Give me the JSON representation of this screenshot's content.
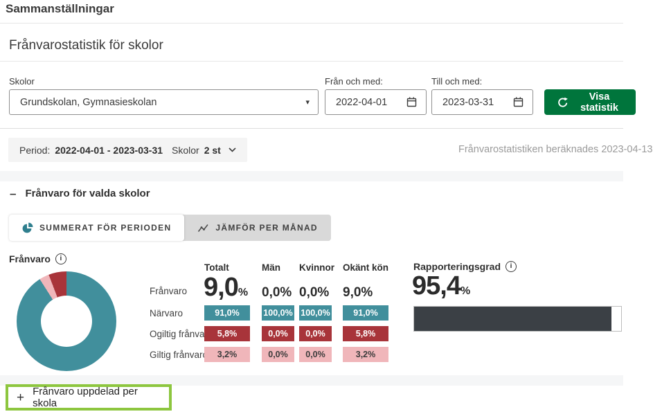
{
  "header": {
    "app_title": "Sammanställningar",
    "page_title": "Frånvarostatistik för skolor"
  },
  "filters": {
    "schools_label": "Skolor",
    "schools_value": "Grundskolan, Gymnasieskolan",
    "from_label": "Från och med:",
    "from_value": "2022-04-01",
    "to_label": "Till och med:",
    "to_value": "2023-03-31",
    "submit_label": "Visa statistik"
  },
  "period_bar": {
    "period_label": "Period:",
    "period_value": "2022-04-01 - 2023-03-31",
    "schools_label": "Skolor",
    "schools_count": "2 st",
    "calculated_note": "Frånvarostatistiken beräknades 2023-04-13"
  },
  "section": {
    "collapse_title": "Frånvaro för valda skolor",
    "tab_summary": "Summerat för perioden",
    "tab_compare": "Jämför per månad"
  },
  "chart_data": {
    "type": "pie",
    "title": "Frånvaro",
    "donut": true,
    "slices": [
      {
        "label": "Närvaro",
        "value": 91.0,
        "color": "#418f9c"
      },
      {
        "label": "Giltig frånvaro",
        "value": 3.2,
        "color": "#f0b6ba"
      },
      {
        "label": "Ogiltig frånvaro",
        "value": 5.8,
        "color": "#a8343a"
      }
    ]
  },
  "stats": {
    "title": "Frånvaro",
    "columns": [
      "Totalt",
      "Män",
      "Kvinnor",
      "Okänt kön"
    ],
    "franvaro": {
      "label": "Frånvaro",
      "total_main": "9,0",
      "total_unit": "%",
      "man": "0,0%",
      "kvinnor": "0,0%",
      "okant": "9,0%"
    },
    "narvaro": {
      "label": "Närvaro",
      "values": [
        "91,0%",
        "100,0%",
        "100,0%",
        "91,0%"
      ]
    },
    "ogiltig": {
      "label": "Ogiltig frånvaro",
      "values": [
        "5,8%",
        "0,0%",
        "0,0%",
        "5,8%"
      ]
    },
    "giltig": {
      "label": "Giltig frånvaro",
      "values": [
        "3,2%",
        "0,0%",
        "0,0%",
        "3,2%"
      ]
    }
  },
  "rapportering": {
    "label": "Rapporteringsgrad",
    "value_main": "95,4",
    "value_unit": "%",
    "percent": 95.4
  },
  "expander": {
    "label": "Frånvaro uppdelad per skola"
  },
  "icons": {
    "info": "i",
    "plus": "+",
    "minus": "–",
    "select_caret": "▾"
  },
  "colors": {
    "teal": "#418f9c",
    "red": "#a8343a",
    "pink": "#f0b6ba",
    "button_green": "#00753c",
    "bar_dark": "#3b4045",
    "highlight_green": "#8dc63f"
  }
}
